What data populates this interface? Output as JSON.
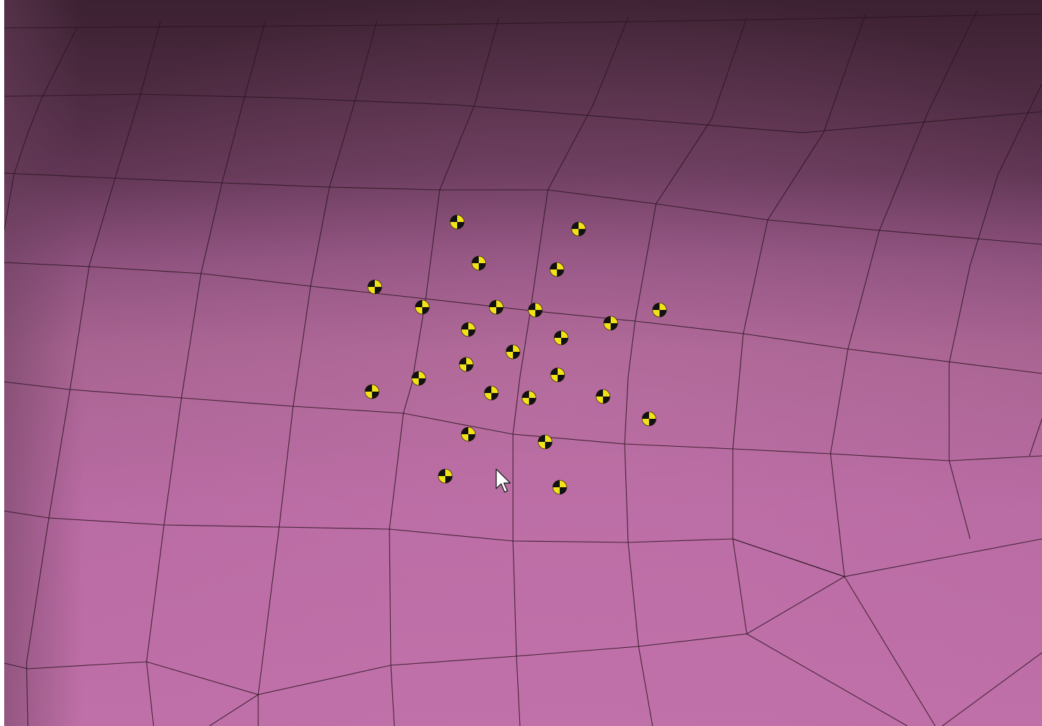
{
  "viewport": {
    "background_color": "#ffffff",
    "surface_colors": {
      "top_dark": "#3b2131",
      "mid_dark": "#5b3450",
      "mid": "#8e4f7d",
      "light": "#b96aa3",
      "lighter": "#c572ab",
      "edge_left": "#7c4b6d"
    },
    "mesh_line_color": "#2a1420",
    "marker_colors": {
      "fill_a": "#f2e21a",
      "fill_b": "#111111"
    },
    "marker_icon": "center-of-gravity-marker-icon",
    "cursor_icon": "arrow-cursor-icon"
  }
}
